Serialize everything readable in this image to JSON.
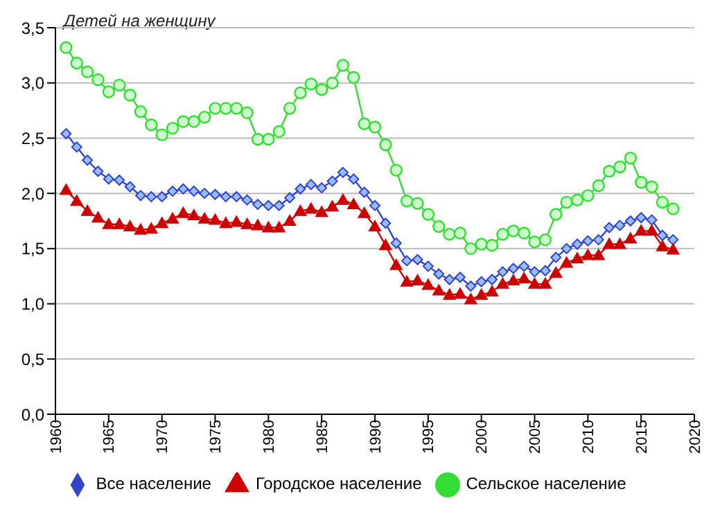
{
  "chart_data": {
    "type": "line",
    "ylabel": "Детей на женщину",
    "x": [
      1961,
      1962,
      1963,
      1964,
      1965,
      1966,
      1967,
      1968,
      1969,
      1970,
      1971,
      1972,
      1973,
      1974,
      1975,
      1976,
      1977,
      1978,
      1979,
      1980,
      1981,
      1982,
      1983,
      1984,
      1985,
      1986,
      1987,
      1988,
      1989,
      1990,
      1991,
      1992,
      1993,
      1994,
      1995,
      1996,
      1997,
      1998,
      1999,
      2000,
      2001,
      2002,
      2003,
      2004,
      2005,
      2006,
      2007,
      2008,
      2009,
      2010,
      2011,
      2012,
      2013,
      2014,
      2015,
      2016,
      2017,
      2018
    ],
    "series": [
      {
        "name": "Все население",
        "color": "#3344cc",
        "marker": "diamond",
        "values": [
          2.54,
          2.42,
          2.3,
          2.2,
          2.13,
          2.12,
          2.06,
          1.98,
          1.97,
          1.97,
          2.02,
          2.04,
          2.02,
          2.0,
          1.99,
          1.97,
          1.97,
          1.94,
          1.9,
          1.89,
          1.89,
          1.96,
          2.04,
          2.08,
          2.05,
          2.11,
          2.19,
          2.13,
          2.01,
          1.89,
          1.73,
          1.55,
          1.39,
          1.4,
          1.34,
          1.27,
          1.22,
          1.24,
          1.16,
          1.2,
          1.22,
          1.29,
          1.32,
          1.34,
          1.29,
          1.3,
          1.42,
          1.5,
          1.54,
          1.57,
          1.58,
          1.69,
          1.71,
          1.75,
          1.78,
          1.76,
          1.62,
          1.58
        ]
      },
      {
        "name": "Городское население",
        "color": "#cc0000",
        "marker": "triangle",
        "values": [
          2.03,
          1.93,
          1.84,
          1.78,
          1.72,
          1.72,
          1.7,
          1.67,
          1.68,
          1.73,
          1.77,
          1.82,
          1.8,
          1.77,
          1.76,
          1.73,
          1.74,
          1.72,
          1.71,
          1.69,
          1.69,
          1.75,
          1.84,
          1.86,
          1.83,
          1.88,
          1.94,
          1.9,
          1.82,
          1.7,
          1.53,
          1.35,
          1.2,
          1.21,
          1.17,
          1.12,
          1.08,
          1.09,
          1.04,
          1.08,
          1.11,
          1.18,
          1.21,
          1.23,
          1.18,
          1.18,
          1.28,
          1.37,
          1.41,
          1.44,
          1.44,
          1.54,
          1.54,
          1.59,
          1.66,
          1.66,
          1.52,
          1.49
        ]
      },
      {
        "name": "Сельское население",
        "color": "#33dd33",
        "marker": "circle",
        "values": [
          3.32,
          3.18,
          3.1,
          3.03,
          2.92,
          2.98,
          2.89,
          2.74,
          2.62,
          2.53,
          2.59,
          2.65,
          2.65,
          2.69,
          2.77,
          2.77,
          2.77,
          2.73,
          2.49,
          2.49,
          2.56,
          2.77,
          2.91,
          2.99,
          2.94,
          3.0,
          3.16,
          3.05,
          2.63,
          2.6,
          2.44,
          2.21,
          1.93,
          1.91,
          1.81,
          1.7,
          1.63,
          1.64,
          1.5,
          1.54,
          1.53,
          1.63,
          1.66,
          1.64,
          1.56,
          1.58,
          1.81,
          1.92,
          1.94,
          1.98,
          2.07,
          2.2,
          2.24,
          2.32,
          2.1,
          2.06,
          1.92,
          1.86
        ]
      }
    ],
    "xlim": [
      1960,
      2020
    ],
    "xticks": [
      1960,
      1965,
      1970,
      1975,
      1980,
      1985,
      1990,
      1995,
      2000,
      2005,
      2010,
      2015,
      2020
    ],
    "ylim": [
      0,
      3.5
    ],
    "yticks": [
      {
        "value": 0,
        "label": "0,0"
      },
      {
        "value": 0.5,
        "label": "0,5"
      },
      {
        "value": 1,
        "label": "1,0"
      },
      {
        "value": 1.5,
        "label": "1,5"
      },
      {
        "value": 2,
        "label": "2,0"
      },
      {
        "value": 2.5,
        "label": "2,5"
      },
      {
        "value": 3,
        "label": "3,0"
      },
      {
        "value": 3.5,
        "label": "3,5"
      }
    ],
    "grid": "y",
    "legend": "bottom",
    "line_style": "solid"
  }
}
